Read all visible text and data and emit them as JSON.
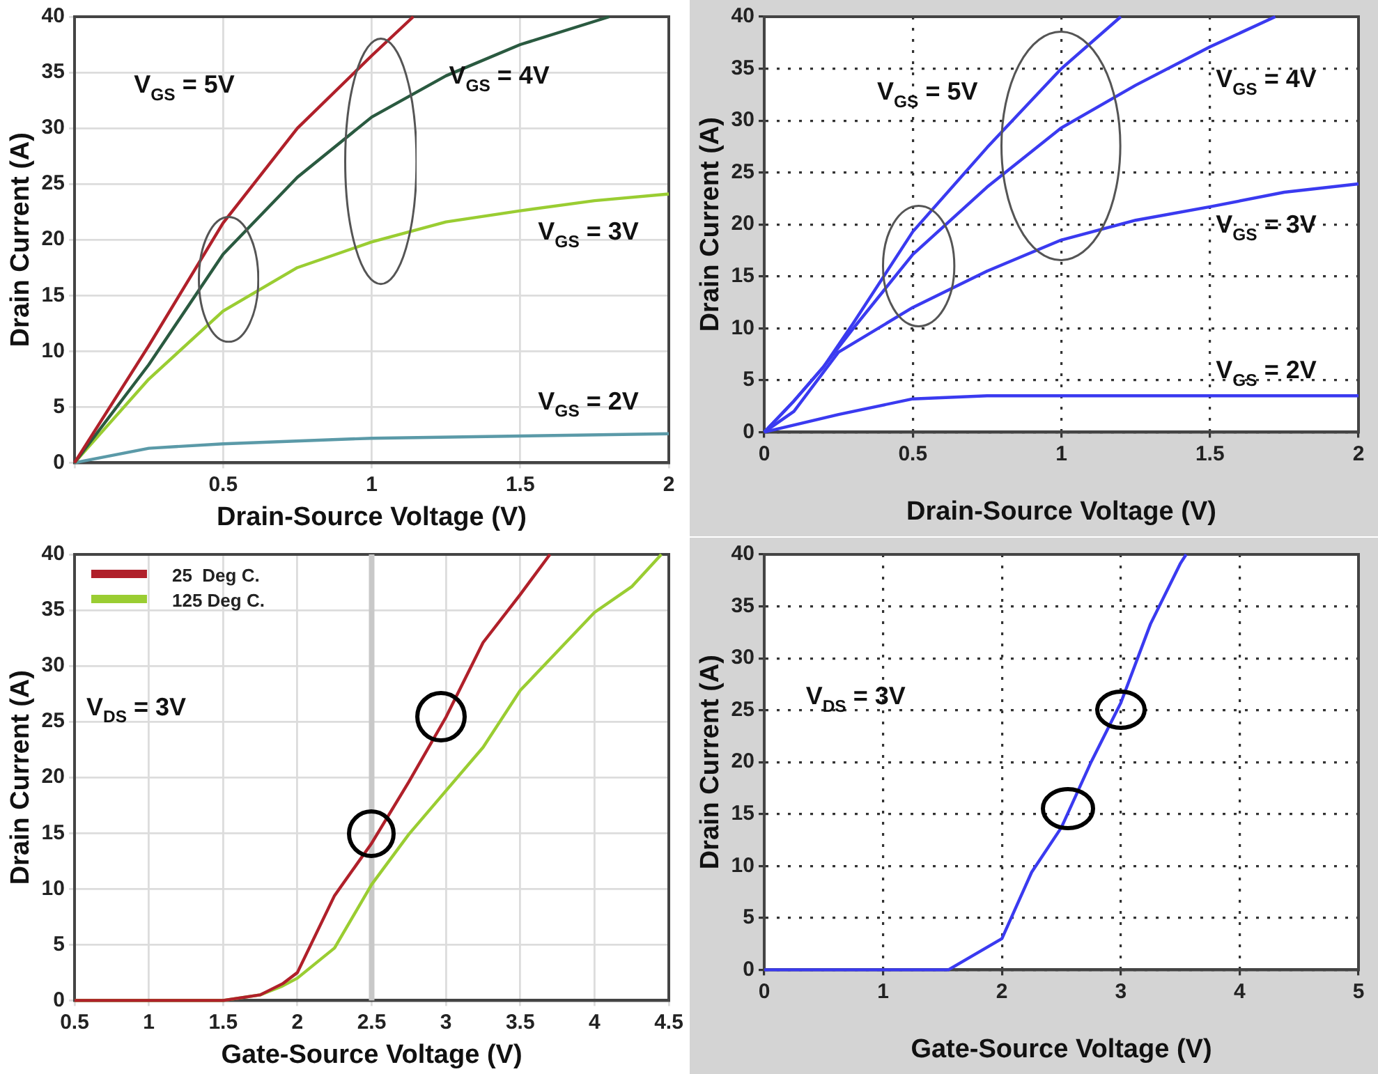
{
  "chart_data": [
    {
      "type": "line",
      "xlabel": "Drain-Source Voltage (V)",
      "ylabel": "Drain Current (A)",
      "xlim": [
        0,
        2
      ],
      "ylim": [
        0,
        40
      ],
      "xticks": [
        {
          "value": 0,
          "label": null
        },
        0.5,
        1,
        1.5,
        2
      ],
      "yticks": [
        0,
        5,
        10,
        15,
        20,
        25,
        30,
        35,
        40
      ],
      "grid": true,
      "legend": false,
      "marker": "none",
      "line_style": "solid",
      "series": [
        {
          "name": "V$_{GS}$ = 5V",
          "color": "#b0202a",
          "x": [
            0,
            0.25,
            0.5,
            0.75,
            1,
            1.14
          ],
          "values": [
            0,
            10.5,
            21.5,
            30,
            36.5,
            40
          ]
        },
        {
          "name": "V$_{GS}$ = 4V",
          "color": "#2a5a40",
          "x": [
            0,
            0.25,
            0.5,
            0.75,
            1,
            1.25,
            1.5,
            1.8
          ],
          "values": [
            0,
            8.8,
            18.7,
            25.6,
            31,
            34.7,
            37.5,
            40
          ]
        },
        {
          "name": "V$_{GS}$ = 3V",
          "color": "#9acd32",
          "x": [
            0,
            0.25,
            0.5,
            0.75,
            1,
            1.25,
            1.5,
            1.75,
            2
          ],
          "values": [
            0,
            7.5,
            13.6,
            17.5,
            19.8,
            21.6,
            22.6,
            23.5,
            24.1
          ]
        },
        {
          "name": "V$_{GS}$ = 2V",
          "color": "#5b9aa8",
          "x": [
            0,
            0.25,
            0.5,
            1,
            1.5,
            2
          ],
          "values": [
            0,
            1.3,
            1.7,
            2.2,
            2.4,
            2.6
          ]
        }
      ]
    },
    {
      "type": "line",
      "xlabel": "Drain-Source Voltage (V)",
      "ylabel": "Drain Current (A)",
      "xlim": [
        0,
        2
      ],
      "ylim": [
        0,
        40
      ],
      "xticks": [
        0,
        0.5,
        1,
        1.5,
        2
      ],
      "yticks": [
        0,
        5,
        10,
        15,
        20,
        25,
        30,
        35,
        40
      ],
      "grid": true,
      "legend": false,
      "marker": "none",
      "line_style": "solid",
      "series": [
        {
          "name": "V$_{GS}$ = 5V",
          "color": "#3a3af0",
          "x": [
            0,
            0.1,
            0.2,
            0.3,
            0.5,
            0.75,
            1,
            1.2
          ],
          "values": [
            0,
            3,
            6.3,
            10.5,
            19.3,
            27.4,
            35,
            40
          ]
        },
        {
          "name": "V$_{GS}$ = 4V",
          "color": "#3a3af0",
          "x": [
            0,
            0.1,
            0.2,
            0.3,
            0.5,
            0.75,
            1,
            1.25,
            1.5,
            1.72
          ],
          "values": [
            0,
            3,
            6.3,
            10,
            17.1,
            23.6,
            29.3,
            33.4,
            37.1,
            40
          ]
        },
        {
          "name": "V$_{GS}$ = 3V",
          "color": "#3a3af0",
          "x": [
            0,
            0.1,
            0.25,
            0.5,
            0.75,
            1,
            1.25,
            1.5,
            1.75,
            2
          ],
          "values": [
            0,
            2,
            7.7,
            12,
            15.5,
            18.5,
            20.4,
            21.7,
            23.1,
            23.9
          ]
        },
        {
          "name": "V$_{GS}$ = 2V",
          "color": "#3a3af0",
          "x": [
            0,
            0.25,
            0.5,
            0.75,
            1,
            2
          ],
          "values": [
            0,
            1.7,
            3.2,
            3.5,
            3.5,
            3.5
          ]
        }
      ]
    },
    {
      "type": "line",
      "xlabel": "Gate-Source Voltage (V)",
      "ylabel": "Drain Current (A)",
      "xlim": [
        0.5,
        4.5
      ],
      "ylim": [
        0,
        40
      ],
      "xticks": [
        0.5,
        1,
        1.5,
        2,
        2.5,
        3,
        3.5,
        4,
        4.5
      ],
      "yticks": [
        0,
        5,
        10,
        15,
        20,
        25,
        30,
        35,
        40
      ],
      "grid": true,
      "legend": "top left",
      "marker": "none",
      "line_style": "solid",
      "series": [
        {
          "name": "25  Deg C.",
          "color": "#b0202a",
          "x": [
            0.5,
            1.5,
            1.75,
            1.9,
            2,
            2.25,
            2.5,
            2.75,
            3,
            3.25,
            3.5,
            3.7
          ],
          "values": [
            0,
            0,
            0.5,
            1.5,
            2.5,
            9.4,
            14.1,
            19.6,
            25.4,
            32.1,
            36.4,
            40
          ]
        },
        {
          "name": "125 Deg C.",
          "color": "#9acd32",
          "x": [
            0.5,
            1.5,
            1.75,
            1.9,
            2,
            2.25,
            2.5,
            2.75,
            3,
            3.25,
            3.5,
            3.75,
            4,
            4.25,
            4.45
          ],
          "values": [
            0,
            0,
            0.5,
            1.3,
            2,
            4.7,
            10.4,
            14.9,
            18.8,
            22.7,
            27.8,
            31.3,
            34.8,
            37.1,
            40
          ]
        }
      ],
      "ref_lines": [
        {
          "axis": "x",
          "value": 2.5,
          "color": "#c8c8c8"
        }
      ],
      "annotations": [
        "V$_{DS}$ = 3V"
      ]
    },
    {
      "type": "line",
      "xlabel": "Gate-Source Voltage (V)",
      "ylabel": "Drain Current (A)",
      "xlim": [
        0,
        5
      ],
      "ylim": [
        0,
        40
      ],
      "xticks": [
        0,
        1,
        2,
        3,
        4,
        5
      ],
      "yticks": [
        0,
        5,
        10,
        15,
        20,
        25,
        30,
        35,
        40
      ],
      "grid": true,
      "legend": false,
      "marker": "none",
      "line_style": "solid",
      "series": [
        {
          "color": "#3a3af0",
          "x": [
            0,
            1.55,
            2,
            2.25,
            2.5,
            2.75,
            3,
            3.25,
            3.5,
            3.55
          ],
          "values": [
            0,
            0,
            3,
            9.4,
            13.7,
            20,
            25.7,
            33.3,
            39.1,
            40
          ]
        }
      ],
      "annotations": [
        "V$_{DS}$ = 3V"
      ]
    }
  ]
}
